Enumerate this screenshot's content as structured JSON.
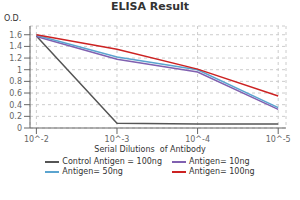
{
  "chart_data": {
    "type": "line",
    "title": "ELISA Result",
    "xlabel": "Serial Dilutions  of Antibody",
    "ylabel": "O.D.",
    "x": [
      0.01,
      0.001,
      0.0001,
      1e-05
    ],
    "series": [
      {
        "name": "Control Antigen = 100ng",
        "color": "#555555",
        "values": [
          1.58,
          0.08,
          0.07,
          0.07
        ]
      },
      {
        "name": "Antigen= 10ng",
        "color": "#8060B0",
        "values": [
          1.57,
          1.18,
          0.96,
          0.32
        ]
      },
      {
        "name": "Antigen= 50ng",
        "color": "#5BA4CF",
        "values": [
          1.59,
          1.22,
          1.0,
          0.35
        ]
      },
      {
        "name": "Antigen= 100ng",
        "color": "#CC2222",
        "values": [
          1.6,
          1.35,
          1.01,
          0.55
        ]
      }
    ],
    "xlim": [
      0.012,
      8e-06
    ],
    "ylim": [
      0,
      1.75
    ],
    "xticks": [
      {
        "value": 0.01,
        "label": "10^-2"
      },
      {
        "value": 0.001,
        "label": "10^-3"
      },
      {
        "value": 0.0001,
        "label": "10^-4"
      },
      {
        "value": 1e-05,
        "label": "10^-5"
      }
    ],
    "yticks": [
      0,
      0.2,
      0.4,
      0.6,
      0.8,
      1.0,
      1.2,
      1.4,
      1.6
    ],
    "log": "x",
    "grid": true,
    "legend": "bottom"
  }
}
